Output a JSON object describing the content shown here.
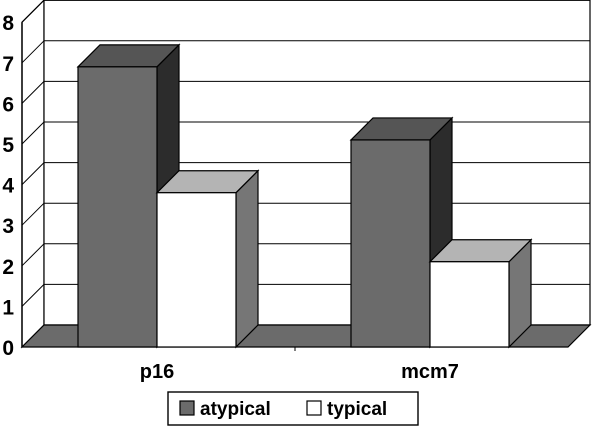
{
  "chart_data": {
    "type": "bar",
    "style": "3d-clustered-column",
    "categories": [
      "p16",
      "mcm7"
    ],
    "series": [
      {
        "name": "atypical",
        "values": [
          6.9,
          5.1
        ],
        "color": "#6b6b6b"
      },
      {
        "name": "typical",
        "values": [
          3.8,
          2.1
        ],
        "color": "#ffffff"
      }
    ],
    "ylim": [
      0,
      8
    ],
    "yticks": [
      "0",
      "1",
      "2",
      "3",
      "4",
      "5",
      "6",
      "7",
      "8"
    ],
    "grid": true,
    "legend_position": "bottom",
    "title": "",
    "xlabel": "",
    "ylabel": ""
  }
}
